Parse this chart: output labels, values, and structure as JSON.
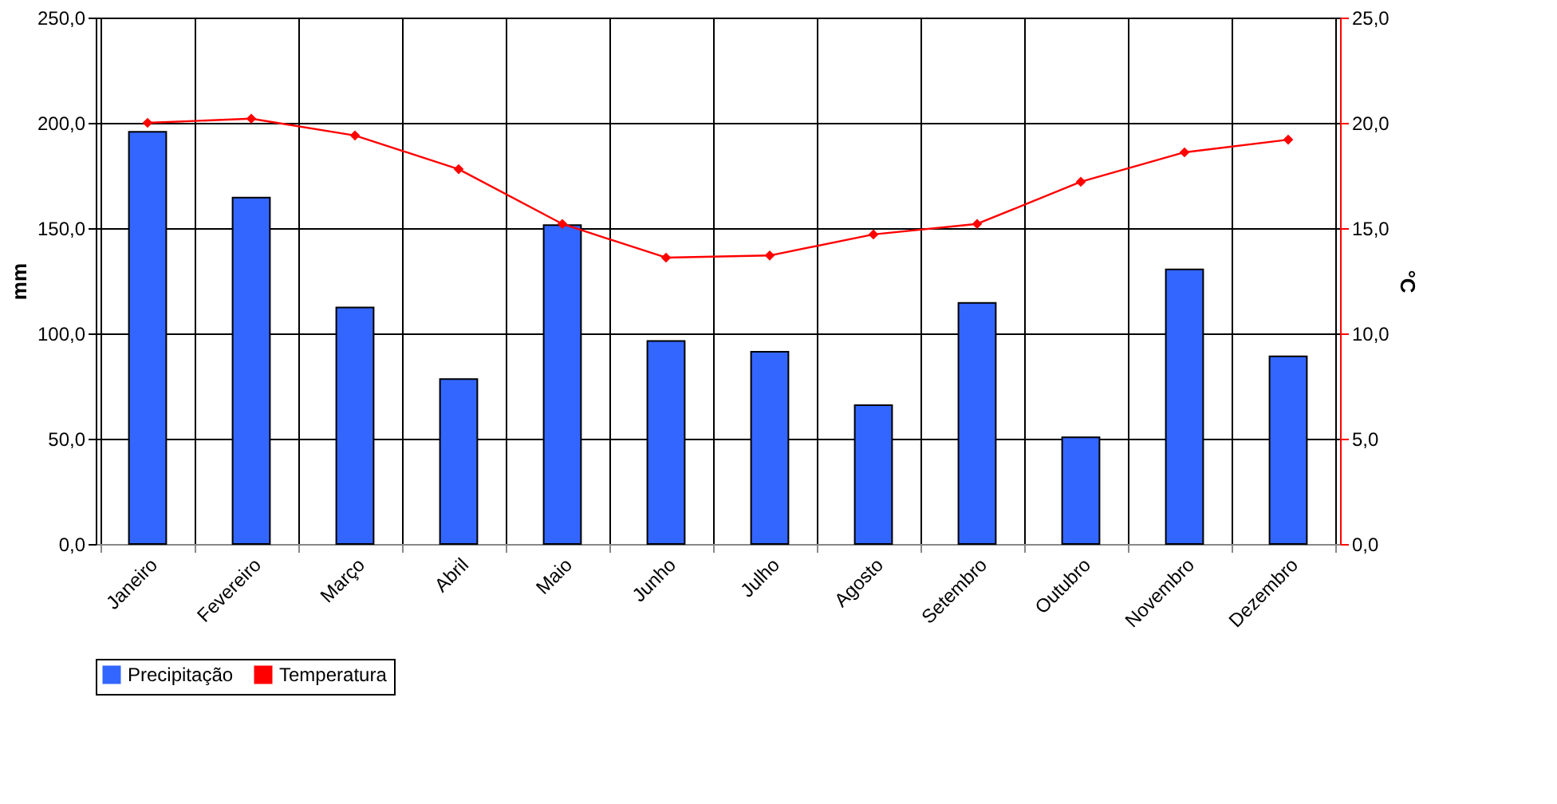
{
  "chart_data": {
    "type": "bar",
    "categories": [
      "Janeiro",
      "Fevereiro",
      "Março",
      "Abril",
      "Maio",
      "Junho",
      "Julho",
      "Agosto",
      "Setembro",
      "Outubro",
      "Novembro",
      "Dezembro"
    ],
    "ylabel": "mm",
    "y2label": "°C",
    "series": [
      {
        "name": "Precipitação",
        "color": "#3366ff",
        "values": [
          195.7,
          164.5,
          112.3,
          78.3,
          151.4,
          96.4,
          91.3,
          65.9,
          114.5,
          50.7,
          130.4,
          89.1
        ]
      },
      {
        "name": "Temperatura",
        "type": "line",
        "axis": "y2",
        "color": "#ff0000",
        "marker": "diamond",
        "values": [
          20.0,
          20.2,
          19.4,
          17.8,
          15.2,
          13.6,
          13.7,
          14.7,
          15.2,
          17.2,
          18.6,
          19.2
        ]
      }
    ],
    "ylim": [
      0,
      250
    ],
    "yticks": [
      {
        "value": 0,
        "label": "0,0"
      },
      {
        "value": 50,
        "label": "50,0"
      },
      {
        "value": 100,
        "label": "100,0"
      },
      {
        "value": 150,
        "label": "150,0"
      },
      {
        "value": 200,
        "label": "200,0"
      },
      {
        "value": 250,
        "label": "250,0"
      }
    ],
    "y2lim": [
      0,
      25
    ],
    "y2ticks": [
      {
        "value": 0,
        "label": "0,0"
      },
      {
        "value": 5,
        "label": "5,0"
      },
      {
        "value": 10,
        "label": "10,0"
      },
      {
        "value": 15,
        "label": "15,0"
      },
      {
        "value": 20,
        "label": "20,0"
      },
      {
        "value": 25,
        "label": "25,0"
      }
    ],
    "grid": true,
    "legend": "bottom"
  }
}
